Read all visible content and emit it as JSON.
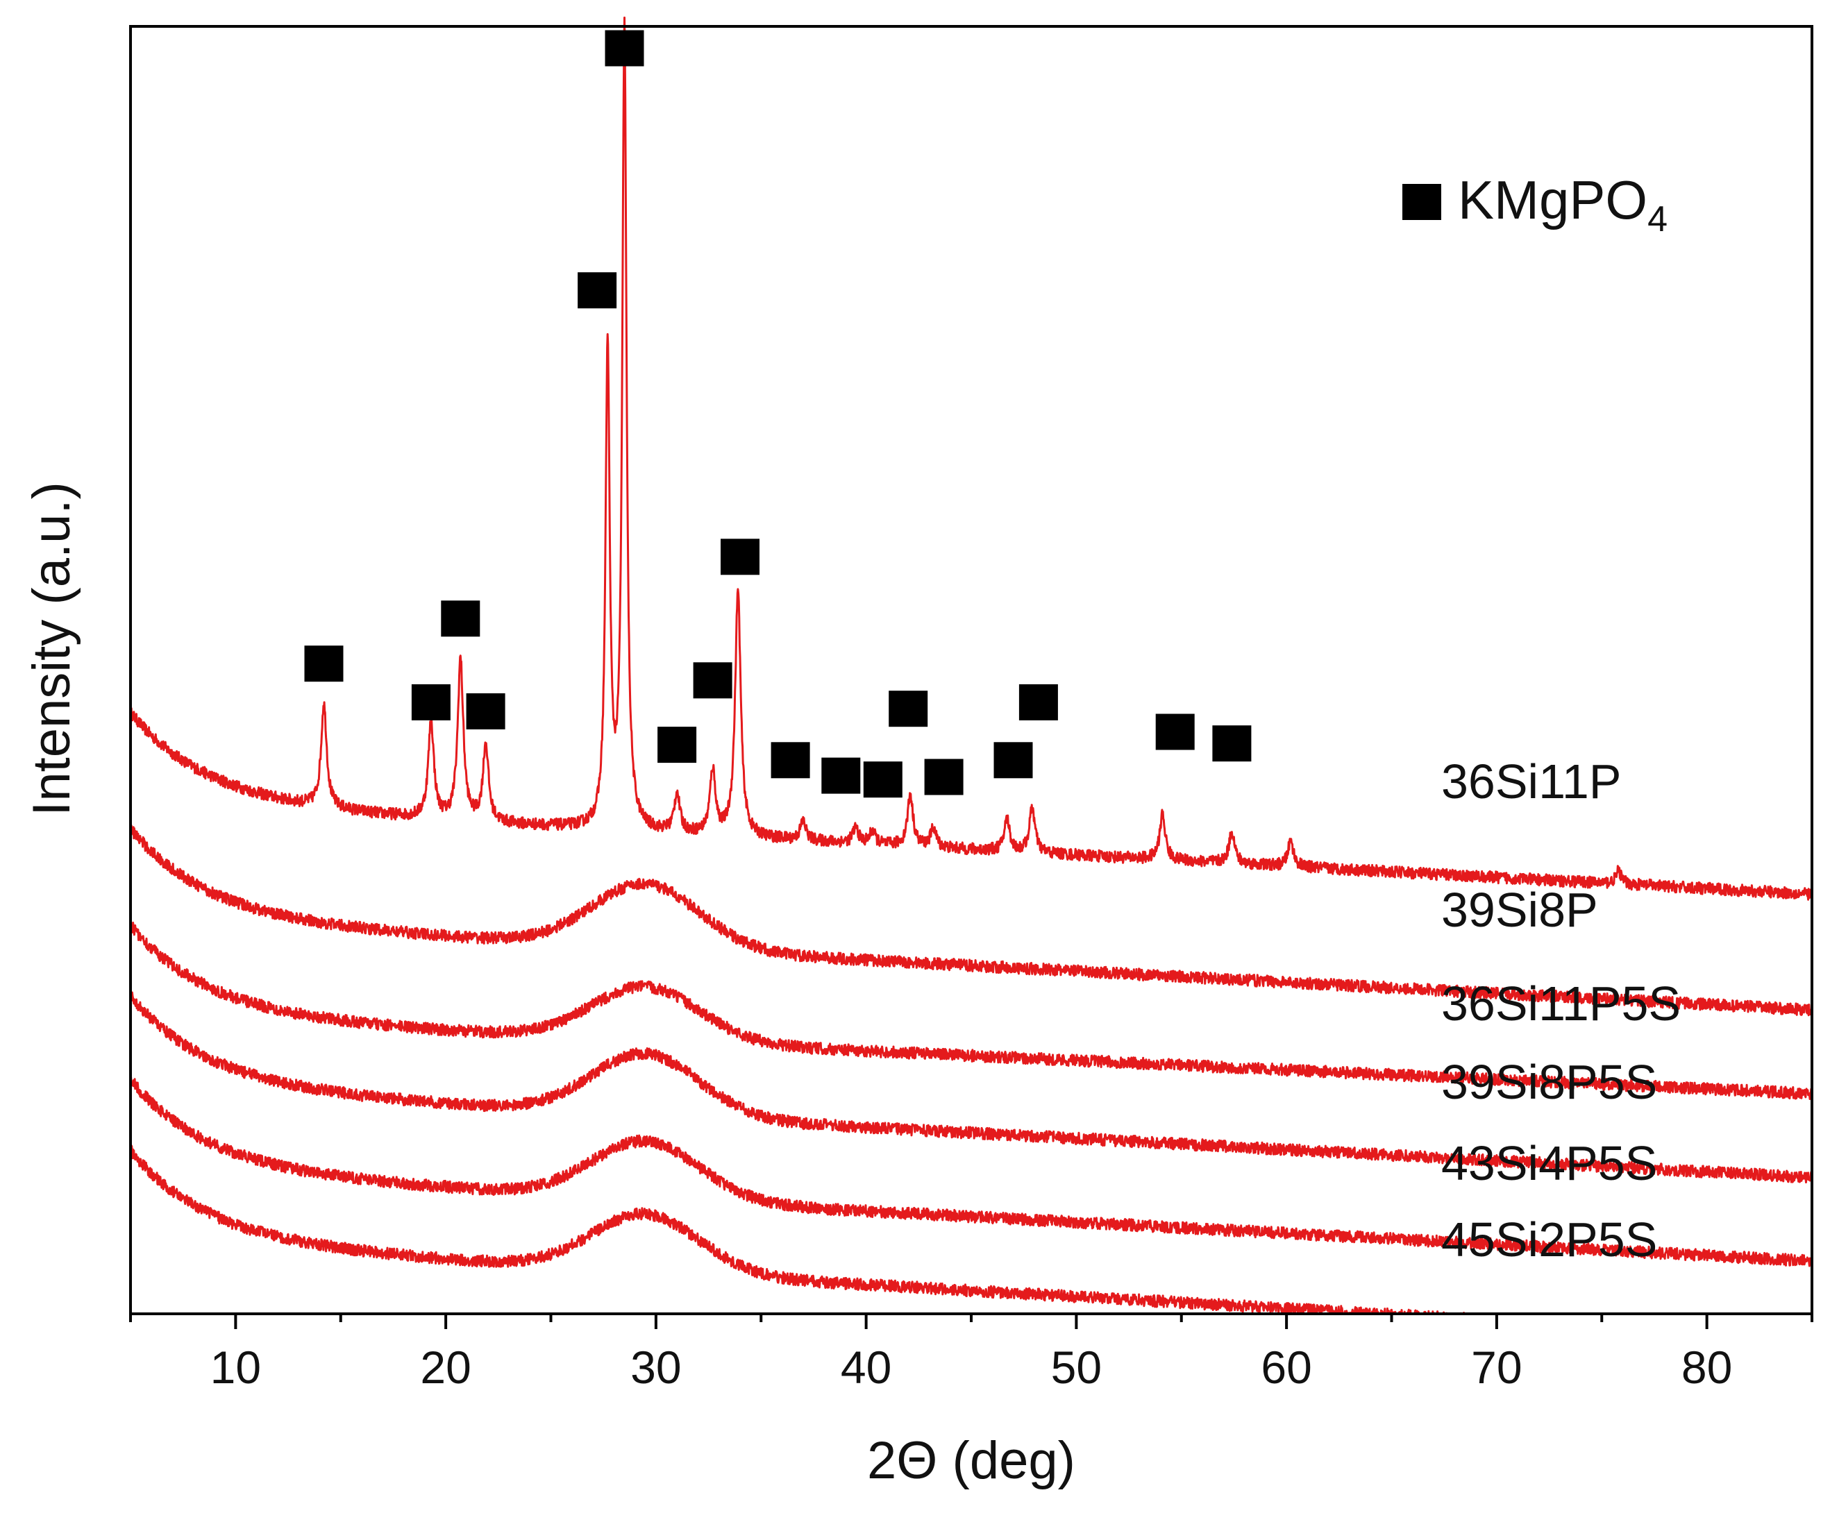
{
  "chart_data": {
    "type": "line",
    "title": "",
    "xlabel": "2Θ (deg)",
    "ylabel": "Intensity (a.u.)",
    "xlim": [
      5,
      85
    ],
    "ylim": [
      0,
      100
    ],
    "xticks": [
      10,
      20,
      30,
      40,
      50,
      60,
      70,
      80
    ],
    "yticks_visible": false,
    "grid": false,
    "line_color": "#e41a1c",
    "marker_color": "#000000",
    "legend": {
      "position": "top-right",
      "marker": "square",
      "label": "KMgPO",
      "subscript": "4"
    },
    "series": [
      {
        "name": "36Si11P",
        "baseline_start": 43.5,
        "baseline_end": 36.0,
        "hump_height": 0,
        "peaks": [
          [
            14.2,
            8.0
          ],
          [
            19.3,
            7.5
          ],
          [
            20.7,
            12.5
          ],
          [
            21.9,
            6.0
          ],
          [
            27.7,
            37.0
          ],
          [
            28.5,
            62.0
          ],
          [
            31.0,
            3.0
          ],
          [
            32.7,
            5.0
          ],
          [
            33.9,
            19.0
          ],
          [
            37.0,
            1.5
          ],
          [
            39.5,
            1.2
          ],
          [
            40.3,
            1.0
          ],
          [
            42.1,
            4.0
          ],
          [
            43.2,
            1.5
          ],
          [
            46.7,
            2.5
          ],
          [
            47.9,
            3.5
          ],
          [
            54.1,
            3.5
          ],
          [
            57.4,
            2.5
          ],
          [
            60.2,
            2.0
          ],
          [
            75.8,
            1.0
          ]
        ]
      },
      {
        "name": "39Si8P",
        "baseline_start": 34.5,
        "baseline_end": 27.0,
        "hump_height": 5.0,
        "peaks": []
      },
      {
        "name": "36Si11P5S",
        "baseline_start": 27.0,
        "baseline_end": 20.5,
        "hump_height": 4.2,
        "peaks": []
      },
      {
        "name": "39Si8P5S",
        "baseline_start": 21.5,
        "baseline_end": 14.0,
        "hump_height": 4.8,
        "peaks": []
      },
      {
        "name": "43Si4P5S",
        "baseline_start": 15.0,
        "baseline_end": 7.5,
        "hump_height": 4.5,
        "peaks": []
      },
      {
        "name": "45Si2P5S",
        "baseline_start": 9.5,
        "baseline_end": 1.5,
        "hump_height": 4.5,
        "peaks": []
      }
    ],
    "kmgpo4_markers": [
      {
        "x": 14.2,
        "y": 50.5
      },
      {
        "x": 19.3,
        "y": 47.5
      },
      {
        "x": 20.7,
        "y": 54.0
      },
      {
        "x": 21.9,
        "y": 46.8
      },
      {
        "x": 27.2,
        "y": 79.5
      },
      {
        "x": 28.5,
        "y": 98.3
      },
      {
        "x": 31.0,
        "y": 44.2
      },
      {
        "x": 32.7,
        "y": 49.2
      },
      {
        "x": 34.0,
        "y": 58.8
      },
      {
        "x": 36.4,
        "y": 43.0
      },
      {
        "x": 38.8,
        "y": 41.8
      },
      {
        "x": 40.8,
        "y": 41.5
      },
      {
        "x": 42.0,
        "y": 47.0
      },
      {
        "x": 43.7,
        "y": 41.7
      },
      {
        "x": 47.0,
        "y": 43.0
      },
      {
        "x": 48.2,
        "y": 47.5
      },
      {
        "x": 54.7,
        "y": 45.2
      },
      {
        "x": 57.4,
        "y": 44.3
      }
    ]
  }
}
